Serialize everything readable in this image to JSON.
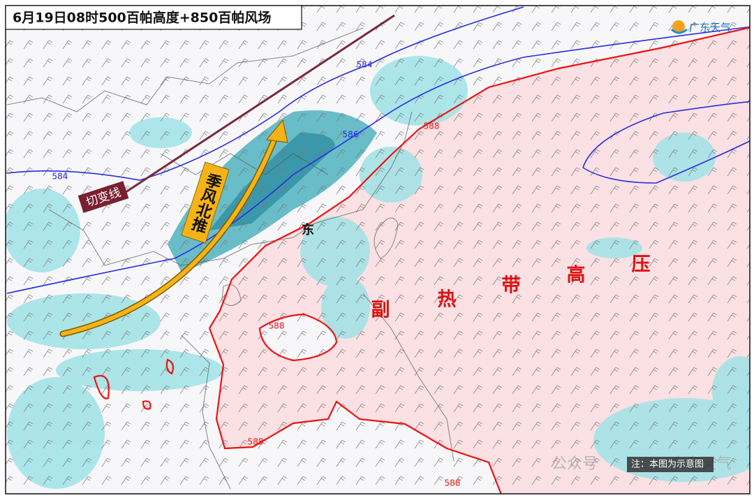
{
  "title": "6月19日08时500百帕高度+850百帕风场",
  "logo": "广东天气",
  "annotations": {
    "shear_line": "切变线",
    "monsoon": "季风北推",
    "subtropical_high": [
      "副",
      "热",
      "带",
      "高",
      "压"
    ],
    "province": "东"
  },
  "contour_labels": [
    584,
    584,
    586,
    588,
    588,
    588,
    588
  ],
  "note": "注：本图为示意图",
  "watermark": [
    "公众号",
    "广东天气"
  ]
}
